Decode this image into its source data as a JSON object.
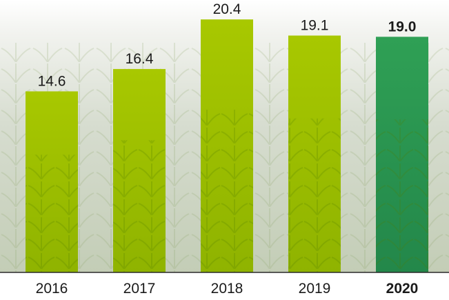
{
  "chart_data": {
    "type": "bar",
    "title": "",
    "xlabel": "",
    "ylabel": "",
    "categories": [
      "2016",
      "2017",
      "2018",
      "2019",
      "2020"
    ],
    "values": [
      14.6,
      16.4,
      20.4,
      19.1,
      19.0
    ],
    "value_labels": [
      "14.6",
      "16.4",
      "20.4",
      "19.1",
      "19.0"
    ],
    "highlight_index": 4,
    "ylim": [
      0,
      21.3
    ],
    "grid": false,
    "legend": "none",
    "colors": {
      "bar": "#a5c400",
      "bar_highlight": "#2e9a52",
      "baseline": "#2a2a2a",
      "label": "#1a1a1a",
      "background_foliage": "#b9c9a3"
    }
  }
}
